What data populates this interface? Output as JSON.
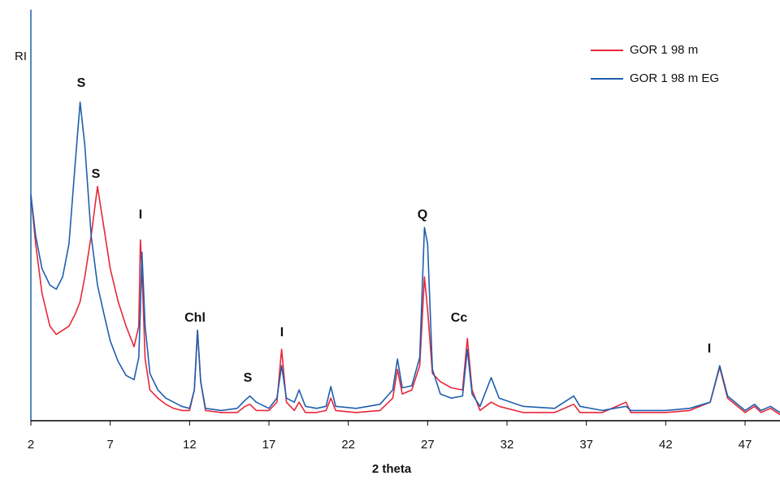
{
  "chart_data": {
    "type": "line",
    "x_label": "2 theta",
    "y_label": "RI",
    "xlim": [
      2,
      49.2
    ],
    "ylim": [
      0,
      100
    ],
    "xticks": [
      2,
      7,
      12,
      17,
      22,
      27,
      32,
      37,
      42,
      47
    ],
    "legend": "upper right",
    "annotations": [
      "S",
      "S",
      "I",
      "Chl",
      "I",
      "S",
      "Q",
      "Cc",
      "I"
    ],
    "x": [
      2,
      2.3,
      2.7,
      3.2,
      3.6,
      4.0,
      4.4,
      4.8,
      5.1,
      5.4,
      5.8,
      6.2,
      6.6,
      7.0,
      7.5,
      8.0,
      8.5,
      8.8,
      8.9,
      9.0,
      9.2,
      9.5,
      10.0,
      10.5,
      11.0,
      11.5,
      12.0,
      12.3,
      12.5,
      12.7,
      13.0,
      14.0,
      15.0,
      15.5,
      15.8,
      16.2,
      17.0,
      17.5,
      17.8,
      18.1,
      18.6,
      18.9,
      19.3,
      20.0,
      20.6,
      20.9,
      21.2,
      22.5,
      24.0,
      24.8,
      25.1,
      25.4,
      26.0,
      26.5,
      26.8,
      27.0,
      27.3,
      27.8,
      28.5,
      29.2,
      29.5,
      29.8,
      30.3,
      31.0,
      31.5,
      33.0,
      35.0,
      36.2,
      36.6,
      38.0,
      39.5,
      39.8,
      42.0,
      43.5,
      44.8,
      45.4,
      45.9,
      47.0,
      47.6,
      48.0,
      48.6,
      49.2
    ],
    "series": [
      {
        "name": "GOR 1 98 m",
        "color": "#e8273a",
        "values": [
          55,
          43,
          31,
          23,
          21,
          22,
          23,
          26,
          29,
          35,
          45,
          57,
          47,
          37,
          29,
          23,
          18,
          23,
          44,
          37,
          15,
          7.5,
          5.5,
          4,
          3,
          2.5,
          2.5,
          7.5,
          22,
          9.5,
          2.5,
          2,
          2,
          3.5,
          4,
          2.5,
          2.5,
          4.5,
          17.4,
          4.5,
          2.5,
          4.5,
          2,
          2,
          2.5,
          5.5,
          2.5,
          2,
          2.5,
          5.5,
          12.5,
          6.5,
          7.5,
          13.4,
          35,
          27,
          11.5,
          9.5,
          8,
          7.5,
          20,
          7.5,
          2.5,
          4.5,
          3.5,
          2,
          2,
          4,
          2,
          2,
          4.5,
          2,
          2,
          2.5,
          4.5,
          13,
          5.5,
          2,
          3.5,
          2,
          3,
          1.5
        ]
      },
      {
        "name": "GOR 1 98 m EG",
        "color": "#1f5fae",
        "values": [
          55,
          45,
          37,
          33,
          32,
          35,
          43,
          63,
          77.5,
          67,
          45,
          33,
          26,
          19.4,
          14.4,
          11,
          10,
          15.4,
          27,
          41,
          23,
          11.5,
          7.5,
          5.5,
          4.5,
          3.5,
          3,
          7.5,
          22,
          9.5,
          3,
          2.5,
          3,
          5,
          6,
          4.5,
          3,
          5.5,
          13.4,
          5.5,
          4.5,
          7.5,
          3.5,
          3,
          3.5,
          8.3,
          3.5,
          3,
          4,
          7.5,
          15,
          8,
          8.5,
          15.4,
          47,
          43,
          12.5,
          6.5,
          5.5,
          6,
          17.4,
          6.5,
          3.5,
          10.5,
          5.5,
          3.5,
          3,
          6,
          3.5,
          2.5,
          3.5,
          2.5,
          2.5,
          3,
          4.5,
          13.4,
          6,
          2.5,
          4,
          2.5,
          3.5,
          2
        ]
      }
    ]
  }
}
